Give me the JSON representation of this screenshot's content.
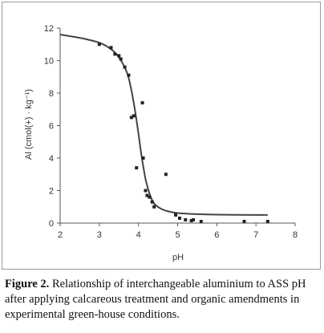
{
  "chart_data": {
    "type": "scatter",
    "xlabel": "pH",
    "ylabel": "Al (cmol(+) · kg⁻¹)",
    "xlim": [
      2,
      8
    ],
    "ylim": [
      0,
      12
    ],
    "x_ticks": [
      "2",
      "3",
      "4",
      "5",
      "6",
      "7",
      "8"
    ],
    "y_ticks": [
      "0",
      "2",
      "4",
      "6",
      "8",
      "10",
      "12"
    ],
    "grid": false,
    "legend": "none",
    "series": [
      {
        "kind": "points",
        "x": [
          3.0,
          3.3,
          3.4,
          3.5,
          3.55,
          3.65,
          3.75,
          3.82,
          3.88,
          3.95,
          4.1,
          4.12,
          4.18,
          4.22,
          4.28,
          4.35,
          4.4,
          4.7,
          4.95,
          5.05,
          5.2,
          5.35,
          5.4,
          5.6,
          6.7,
          7.3
        ],
        "y": [
          11.0,
          10.8,
          10.4,
          10.3,
          10.1,
          9.6,
          9.1,
          6.5,
          6.6,
          3.4,
          7.4,
          4.0,
          2.0,
          1.7,
          1.6,
          1.3,
          1.0,
          3.0,
          0.5,
          0.3,
          0.2,
          0.15,
          0.2,
          0.1,
          0.1,
          0.1
        ]
      },
      {
        "kind": "fitted-curve",
        "x": [
          2.0,
          2.5,
          3.0,
          3.3,
          3.5,
          3.7,
          3.8,
          3.9,
          4.0,
          4.05,
          4.1,
          4.15,
          4.2,
          4.3,
          4.4,
          4.6,
          4.8,
          5.0,
          5.5,
          6.0,
          7.0,
          7.3
        ],
        "y": [
          11.6,
          11.4,
          11.1,
          10.7,
          10.2,
          9.3,
          8.4,
          7.1,
          5.5,
          4.6,
          3.8,
          3.1,
          2.5,
          1.7,
          1.2,
          0.85,
          0.7,
          0.62,
          0.55,
          0.52,
          0.5,
          0.5
        ]
      }
    ]
  },
  "caption": {
    "label": "Figure 2.",
    "text": " Relationship of interchangeable aluminium to ASS pH after applying calcareous treatment and organic amendments in experimental green-house conditions."
  }
}
